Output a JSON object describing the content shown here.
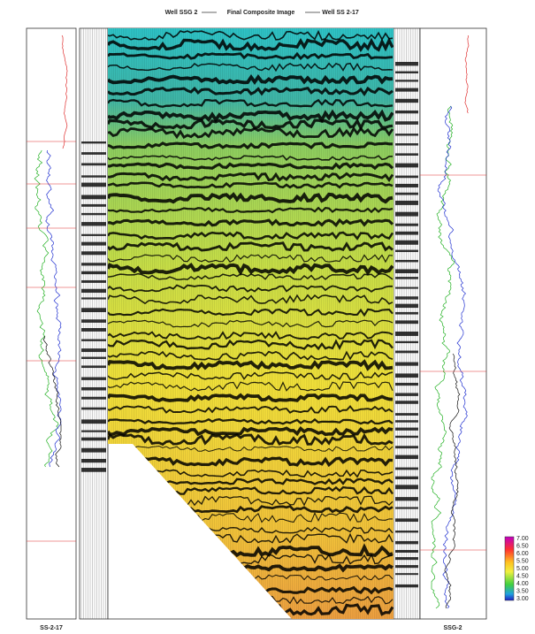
{
  "header": {
    "left_well": "Well SSG 2",
    "title": "Final Composite Image",
    "right_well": "Well SS 2-17"
  },
  "panels": {
    "left_log_label": "SS-2-17",
    "right_log_label": "SSG-2"
  },
  "colorbar": {
    "ticks": [
      "7.00",
      "6.50",
      "6.00",
      "5.50",
      "5.00",
      "4.50",
      "4.00",
      "3.50",
      "3.00"
    ]
  }
}
